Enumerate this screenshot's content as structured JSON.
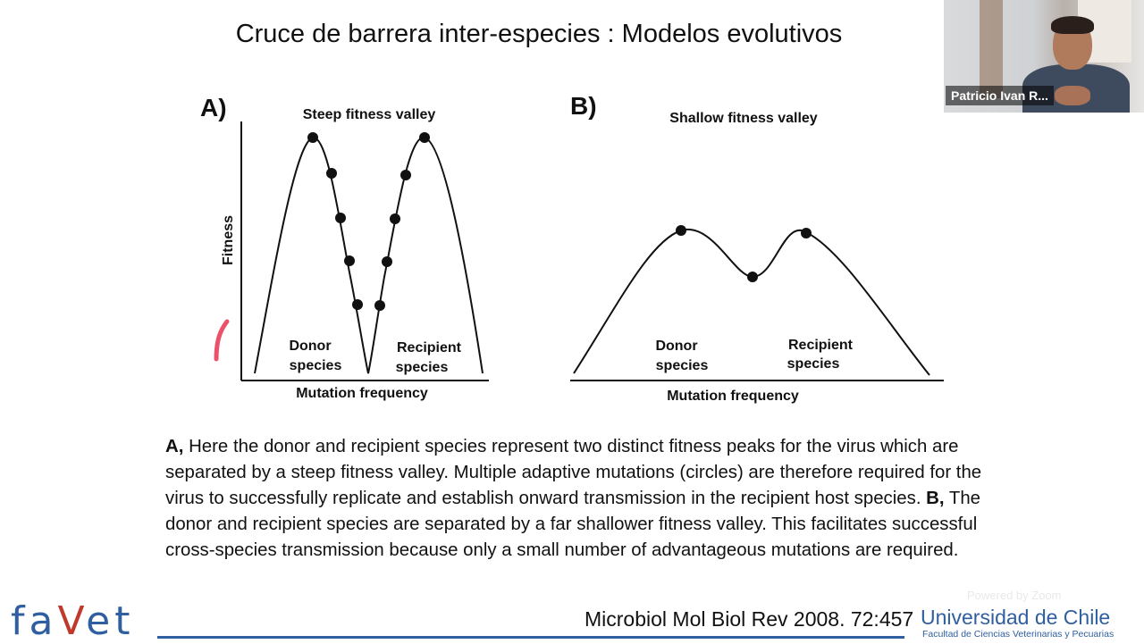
{
  "slide": {
    "title": "Cruce de barrera inter-especies : Modelos evolutivos",
    "caption": {
      "a_label": "A,",
      "a_text": "Here the donor and recipient species represent two distinct fitness peaks for the virus which are separated by a steep fitness valley. Multiple adaptive mutations (circles) are therefore required for the virus to successfully replicate and establish onward transmission in the recipient host species.",
      "b_label": "B,",
      "b_text": "The donor and recipient species are separated by a far shallower fitness valley. This facilitates successful cross-species transmission because only a small number of advantageous mutations are required."
    },
    "citation": "Microbiol Mol Biol Rev 2008. 72:457"
  },
  "figure": {
    "panel_a": {
      "label": "A)",
      "title": "Steep fitness valley",
      "ylabel": "Fitness",
      "xlabel": "Mutation frequency",
      "donor_line1": "Donor",
      "donor_line2": "species",
      "recipient_line1": "Recipient",
      "recipient_line2": "species"
    },
    "panel_b": {
      "label": "B)",
      "title": "Shallow fitness valley",
      "xlabel": "Mutation frequency",
      "donor_line1": "Donor",
      "donor_line2": "species",
      "recipient_line1": "Recipient",
      "recipient_line2": "species"
    }
  },
  "video": {
    "participant_name": "Patricio Ivan R..."
  },
  "branding": {
    "favet_f": "fa",
    "favet_v": "V",
    "favet_rest": "et",
    "university": "Universidad de Chile",
    "faculty": "Facultad de Ciencias Veterinarias y Pecuarias",
    "powered_by": "Powered by Zoom"
  },
  "colors": {
    "brand_blue": "#2f5fa0",
    "brand_red": "#c0392b",
    "annotation_pen": "#e8324f"
  }
}
